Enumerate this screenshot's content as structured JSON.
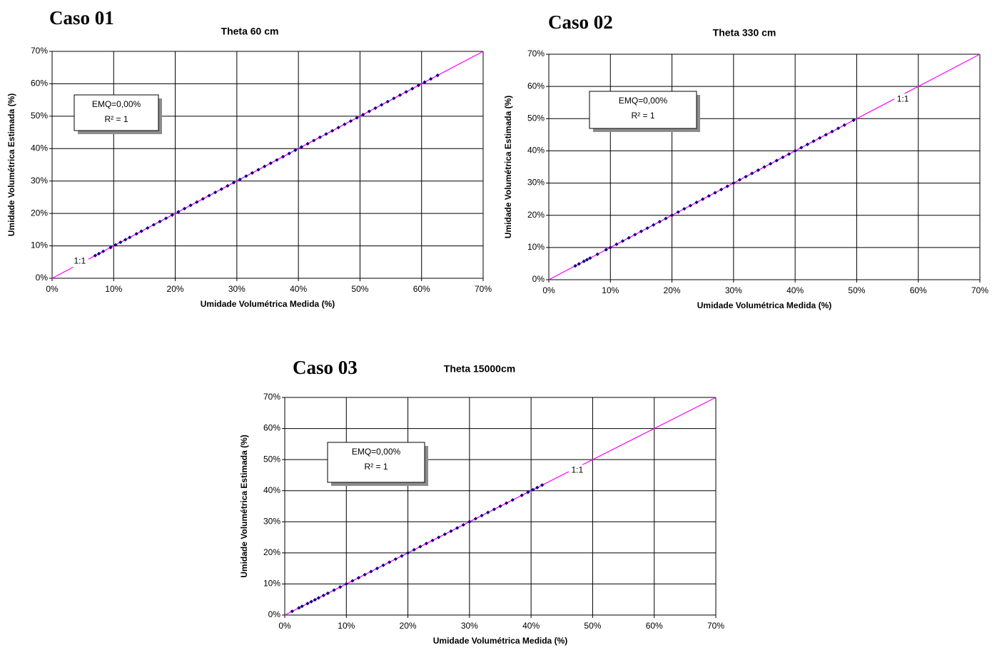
{
  "chart_data": [
    {
      "type": "scatter",
      "case": "Caso 01",
      "title": "Theta 60 cm",
      "x_label": "Umidade Volumétrica Medida (%)",
      "y_label": "Umidade Volumétrica Estimada (%)",
      "annotation": [
        "EMQ=0,00%",
        "R² = 1"
      ],
      "xlim": [
        0,
        70
      ],
      "ylim": [
        0,
        70
      ],
      "grid": true,
      "xticks": [
        {
          "value": 0,
          "label": "0%"
        },
        {
          "value": 10,
          "label": "10%"
        },
        {
          "value": 20,
          "label": "20%"
        },
        {
          "value": 30,
          "label": "30%"
        },
        {
          "value": 40,
          "label": "40%"
        },
        {
          "value": 50,
          "label": "50%"
        },
        {
          "value": 60,
          "label": "60%"
        },
        {
          "value": 70,
          "label": "70%"
        }
      ],
      "yticks": [
        {
          "value": 0,
          "label": "0%"
        },
        {
          "value": 10,
          "label": "10%"
        },
        {
          "value": 20,
          "label": "20%"
        },
        {
          "value": 30,
          "label": "30%"
        },
        {
          "value": 40,
          "label": "40%"
        },
        {
          "value": 50,
          "label": "50%"
        },
        {
          "value": 60,
          "label": "60%"
        },
        {
          "value": 70,
          "label": "70%"
        }
      ],
      "series": [
        {
          "name": "1:1",
          "type": "line",
          "color": "#ff00ff",
          "x": [
            0,
            70
          ],
          "values": [
            0,
            70
          ]
        },
        {
          "type": "scatter",
          "color": "#000080",
          "x": [
            7,
            7.6,
            8.3,
            9.5,
            10.3,
            11.1,
            11.9,
            12.6,
            13.7,
            14.5,
            15.5,
            16.5,
            17.5,
            18.5,
            19.5,
            20.5,
            21.5,
            22.5,
            23.5,
            24.5,
            25.5,
            26.5,
            27.5,
            28.5,
            29.5,
            30.5,
            31.5,
            32.5,
            33.5,
            34.5,
            35.5,
            36.5,
            37.5,
            38.5,
            39.5,
            40.5,
            41.5,
            42.5,
            43.5,
            44.5,
            45.5,
            46.5,
            47.5,
            48.5,
            49.5,
            50.5,
            51.5,
            52.5,
            53.5,
            54.5,
            55.5,
            56.5,
            57.5,
            58.5,
            59.5,
            60.5,
            61.5,
            62.6
          ],
          "values": [
            7,
            7.6,
            8.3,
            9.5,
            10.3,
            11.1,
            11.9,
            12.6,
            13.7,
            14.5,
            15.5,
            16.5,
            17.5,
            18.5,
            19.5,
            20.5,
            21.5,
            22.5,
            23.5,
            24.5,
            25.5,
            26.5,
            27.5,
            28.5,
            29.5,
            30.5,
            31.5,
            32.5,
            33.5,
            34.5,
            35.5,
            36.5,
            37.5,
            38.5,
            39.5,
            40.5,
            41.5,
            42.5,
            43.5,
            44.5,
            45.5,
            46.5,
            47.5,
            48.5,
            49.5,
            50.5,
            51.5,
            52.5,
            53.5,
            54.5,
            55.5,
            56.5,
            57.5,
            58.5,
            59.5,
            60.5,
            61.5,
            62.6
          ]
        }
      ]
    },
    {
      "type": "scatter",
      "case": "Caso 02",
      "title": "Theta 330 cm",
      "x_label": "Umidade Volumétrica Medida (%)",
      "y_label": "Umidade Volumétrica Estimada (%)",
      "annotation": [
        "EMQ=0,00%",
        "R² = 1"
      ],
      "xlim": [
        0,
        70
      ],
      "ylim": [
        0,
        70
      ],
      "grid": true,
      "xticks": [
        {
          "value": 0,
          "label": "0%"
        },
        {
          "value": 10,
          "label": "10%"
        },
        {
          "value": 20,
          "label": "20%"
        },
        {
          "value": 30,
          "label": "30%"
        },
        {
          "value": 40,
          "label": "40%"
        },
        {
          "value": 50,
          "label": "50%"
        },
        {
          "value": 60,
          "label": "60%"
        },
        {
          "value": 70,
          "label": "70%"
        }
      ],
      "yticks": [
        {
          "value": 0,
          "label": "0%"
        },
        {
          "value": 10,
          "label": "10%"
        },
        {
          "value": 20,
          "label": "20%"
        },
        {
          "value": 30,
          "label": "30%"
        },
        {
          "value": 40,
          "label": "40%"
        },
        {
          "value": 50,
          "label": "50%"
        },
        {
          "value": 60,
          "label": "60%"
        },
        {
          "value": 70,
          "label": "70%"
        }
      ],
      "series": [
        {
          "name": "1:1",
          "type": "line",
          "color": "#ff00ff",
          "x": [
            0,
            70
          ],
          "values": [
            0,
            70
          ]
        },
        {
          "type": "scatter",
          "color": "#000080",
          "x": [
            4.3,
            4.9,
            5.7,
            6.2,
            6.7,
            7.9,
            9.3,
            10,
            11,
            12,
            13,
            14,
            15,
            16,
            17,
            18,
            19,
            20,
            21,
            22,
            23,
            24,
            25,
            26,
            27,
            28,
            29,
            30,
            31,
            32,
            33,
            34,
            35,
            36,
            37,
            38,
            39,
            40,
            41,
            42,
            43,
            44,
            45,
            46,
            47,
            48,
            49.5
          ],
          "values": [
            4.3,
            4.9,
            5.7,
            6.2,
            6.7,
            7.9,
            9.3,
            10,
            11,
            12,
            13,
            14,
            15,
            16,
            17,
            18,
            19,
            20,
            21,
            22,
            23,
            24,
            25,
            26,
            27,
            28,
            29,
            30,
            31,
            32,
            33,
            34,
            35,
            36,
            37,
            38,
            39,
            40,
            41,
            42,
            43,
            44,
            45,
            46,
            47,
            48,
            49.5
          ]
        }
      ]
    },
    {
      "type": "scatter",
      "case": "Caso 03",
      "title": "Theta 15000cm",
      "x_label": "Umidade Volumétrica Medida (%)",
      "y_label": "Umidade Volumétrica Estimada (%)",
      "annotation": [
        "EMQ=0,00%",
        "R² = 1"
      ],
      "xlim": [
        0,
        70
      ],
      "ylim": [
        0,
        70
      ],
      "grid": true,
      "xticks": [
        {
          "value": 0,
          "label": "0%"
        },
        {
          "value": 10,
          "label": "10%"
        },
        {
          "value": 20,
          "label": "20%"
        },
        {
          "value": 30,
          "label": "30%"
        },
        {
          "value": 40,
          "label": "40%"
        },
        {
          "value": 50,
          "label": "50%"
        },
        {
          "value": 60,
          "label": "60%"
        },
        {
          "value": 70,
          "label": "70%"
        }
      ],
      "yticks": [
        {
          "value": 0,
          "label": "0%"
        },
        {
          "value": 10,
          "label": "10%"
        },
        {
          "value": 20,
          "label": "20%"
        },
        {
          "value": 30,
          "label": "30%"
        },
        {
          "value": 40,
          "label": "40%"
        },
        {
          "value": 50,
          "label": "50%"
        },
        {
          "value": 60,
          "label": "60%"
        },
        {
          "value": 70,
          "label": "70%"
        }
      ],
      "series": [
        {
          "name": "1:1",
          "type": "line",
          "color": "#ff00ff",
          "x": [
            0,
            70
          ],
          "values": [
            0,
            70
          ]
        },
        {
          "type": "scatter",
          "color": "#000080",
          "x": [
            1.2,
            2.3,
            2.8,
            3.7,
            4.3,
            4.9,
            5.5,
            6.3,
            7,
            8,
            9,
            10,
            11,
            12,
            13,
            14,
            15,
            16,
            17,
            18,
            19,
            20,
            21,
            22,
            23,
            24,
            25,
            26,
            27,
            28,
            29,
            30,
            31,
            32,
            33,
            34,
            35,
            36,
            37,
            38.5,
            39.5,
            40.3,
            41,
            41.8
          ],
          "values": [
            1.2,
            2.3,
            2.8,
            3.7,
            4.3,
            4.9,
            5.5,
            6.3,
            7,
            8,
            9,
            10,
            11,
            12,
            13,
            14,
            15,
            16,
            17,
            18,
            19,
            20,
            21,
            22,
            23,
            24,
            25,
            26,
            27,
            28,
            29,
            30,
            31,
            32,
            33,
            34,
            35,
            36,
            37,
            38.5,
            39.5,
            40.3,
            41,
            41.8
          ]
        }
      ]
    }
  ]
}
